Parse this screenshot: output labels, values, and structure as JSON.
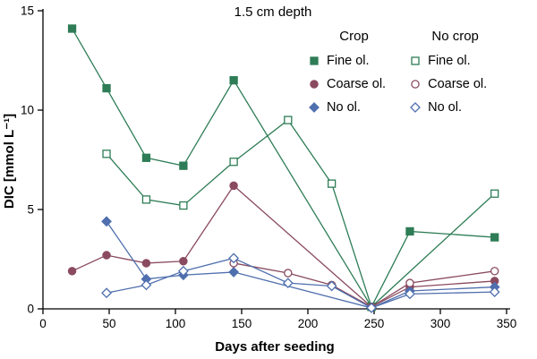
{
  "chart_data": {
    "type": "line",
    "title": "1.5 cm depth",
    "xlabel": "Days after seeding",
    "ylabel": "DIC [mmol L⁻¹]",
    "xlim": [
      0,
      350
    ],
    "ylim": [
      0,
      15
    ],
    "x_ticks": [
      0,
      50,
      100,
      150,
      200,
      250,
      300,
      350
    ],
    "y_ticks": [
      0,
      5,
      10,
      15
    ],
    "grid": false,
    "axis_color": "#000000",
    "legend": {
      "position": "top-right-inside",
      "groups": [
        "Crop",
        "No crop"
      ]
    },
    "series": [
      {
        "name": "Fine ol.",
        "group": "Crop",
        "marker": "square",
        "fill": "filled",
        "color": "#2e7d56",
        "points": [
          [
            22,
            14.1
          ],
          [
            48,
            11.1
          ],
          [
            78,
            7.6
          ],
          [
            106,
            7.2
          ],
          [
            144,
            11.5
          ],
          [
            248,
            0.1
          ],
          [
            277,
            3.9
          ],
          [
            341,
            3.6
          ]
        ]
      },
      {
        "name": "Coarse ol.",
        "group": "Crop",
        "marker": "circle",
        "fill": "filled",
        "color": "#8a4a5f",
        "points": [
          [
            22,
            1.9
          ],
          [
            48,
            2.7
          ],
          [
            78,
            2.3
          ],
          [
            106,
            2.4
          ],
          [
            144,
            6.2
          ],
          [
            248,
            0.1
          ],
          [
            277,
            1.1
          ],
          [
            341,
            1.4
          ]
        ]
      },
      {
        "name": "No ol.",
        "group": "Crop",
        "marker": "diamond",
        "fill": "filled",
        "color": "#4f6fae",
        "points": [
          [
            48,
            4.4
          ],
          [
            78,
            1.5
          ],
          [
            106,
            1.7
          ],
          [
            144,
            1.85
          ],
          [
            248,
            0.05
          ],
          [
            277,
            0.9
          ],
          [
            341,
            1.1
          ]
        ]
      },
      {
        "name": "Fine ol.",
        "group": "No crop",
        "marker": "square",
        "fill": "open",
        "color": "#2e7d56",
        "points": [
          [
            48,
            7.8
          ],
          [
            78,
            5.5
          ],
          [
            106,
            5.2
          ],
          [
            144,
            7.4
          ],
          [
            185,
            9.5
          ],
          [
            218,
            6.3
          ],
          [
            248,
            0.1
          ],
          [
            341,
            5.8
          ]
        ]
      },
      {
        "name": "Coarse ol.",
        "group": "No crop",
        "marker": "circle",
        "fill": "open",
        "color": "#8a4a5f",
        "points": [
          [
            144,
            2.3
          ],
          [
            185,
            1.8
          ],
          [
            218,
            1.2
          ],
          [
            248,
            0.1
          ],
          [
            277,
            1.3
          ],
          [
            341,
            1.9
          ]
        ]
      },
      {
        "name": "No ol.",
        "group": "No crop",
        "marker": "diamond",
        "fill": "open",
        "color": "#4f6fae",
        "points": [
          [
            48,
            0.8
          ],
          [
            78,
            1.2
          ],
          [
            106,
            1.9
          ],
          [
            144,
            2.55
          ],
          [
            185,
            1.3
          ],
          [
            218,
            1.15
          ],
          [
            248,
            0.05
          ],
          [
            277,
            0.75
          ],
          [
            341,
            0.85
          ]
        ]
      }
    ]
  }
}
